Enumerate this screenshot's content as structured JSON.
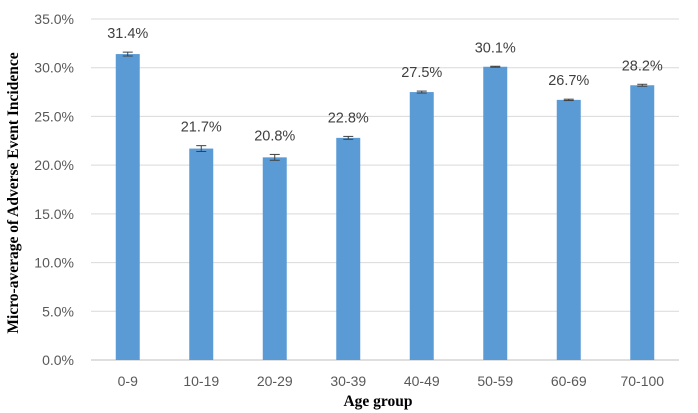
{
  "chart_data": {
    "type": "bar",
    "xlabel": "Age group",
    "ylabel": "Micro-average of Adverse Event Incidence",
    "categories": [
      "0-9",
      "10-19",
      "20-29",
      "30-39",
      "40-49",
      "50-59",
      "60-69",
      "70-100"
    ],
    "values": [
      31.4,
      21.7,
      20.8,
      22.8,
      27.5,
      30.1,
      26.7,
      28.2
    ],
    "data_labels": [
      "31.4%",
      "21.7%",
      "20.8%",
      "22.8%",
      "27.5%",
      "30.1%",
      "26.7%",
      "28.2%"
    ],
    "error_bars": [
      0.2,
      0.3,
      0.3,
      0.15,
      0.1,
      0.05,
      0.07,
      0.1
    ],
    "y_ticks": [
      0,
      5,
      10,
      15,
      20,
      25,
      30,
      35
    ],
    "y_tick_labels": [
      "0.0%",
      "5.0%",
      "10.0%",
      "15.0%",
      "20.0%",
      "25.0%",
      "30.0%",
      "35.0%"
    ],
    "ylim": [
      0,
      35
    ],
    "grid": true,
    "legend": "none",
    "colors": {
      "bar": "#5b9bd5",
      "grid": "#d9d9d9",
      "error_bar": "#404040"
    }
  }
}
